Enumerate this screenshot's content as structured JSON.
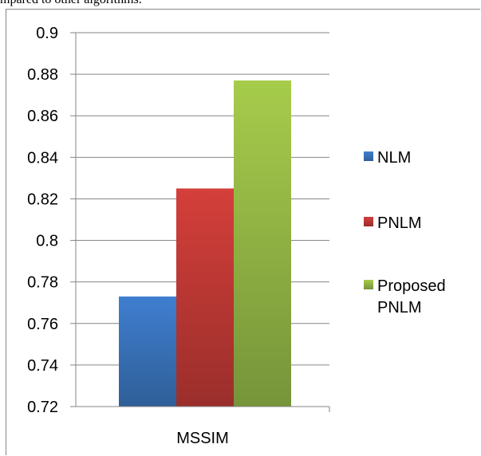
{
  "caption": "mpared to other algorithms.",
  "chart_data": {
    "type": "bar",
    "categories": [
      "MSSIM"
    ],
    "series": [
      {
        "name": "NLM",
        "values": [
          0.773
        ]
      },
      {
        "name": "PNLM",
        "values": [
          0.825
        ]
      },
      {
        "name": "Proposed PNLM",
        "values": [
          0.877
        ]
      }
    ],
    "ylim": [
      0.72,
      0.9
    ],
    "yticks": [
      "0.72",
      "0.74",
      "0.76",
      "0.78",
      "0.8",
      "0.82",
      "0.84",
      "0.86",
      "0.88",
      "0.9"
    ],
    "grid": true,
    "legend": "right",
    "colors": [
      "#4a7ebb",
      "#be4b48",
      "#98b954"
    ],
    "legend_labels": [
      {
        "lines": [
          "NLM"
        ]
      },
      {
        "lines": [
          "PNLM"
        ]
      },
      {
        "lines": [
          "Proposed",
          "PNLM"
        ]
      }
    ]
  }
}
